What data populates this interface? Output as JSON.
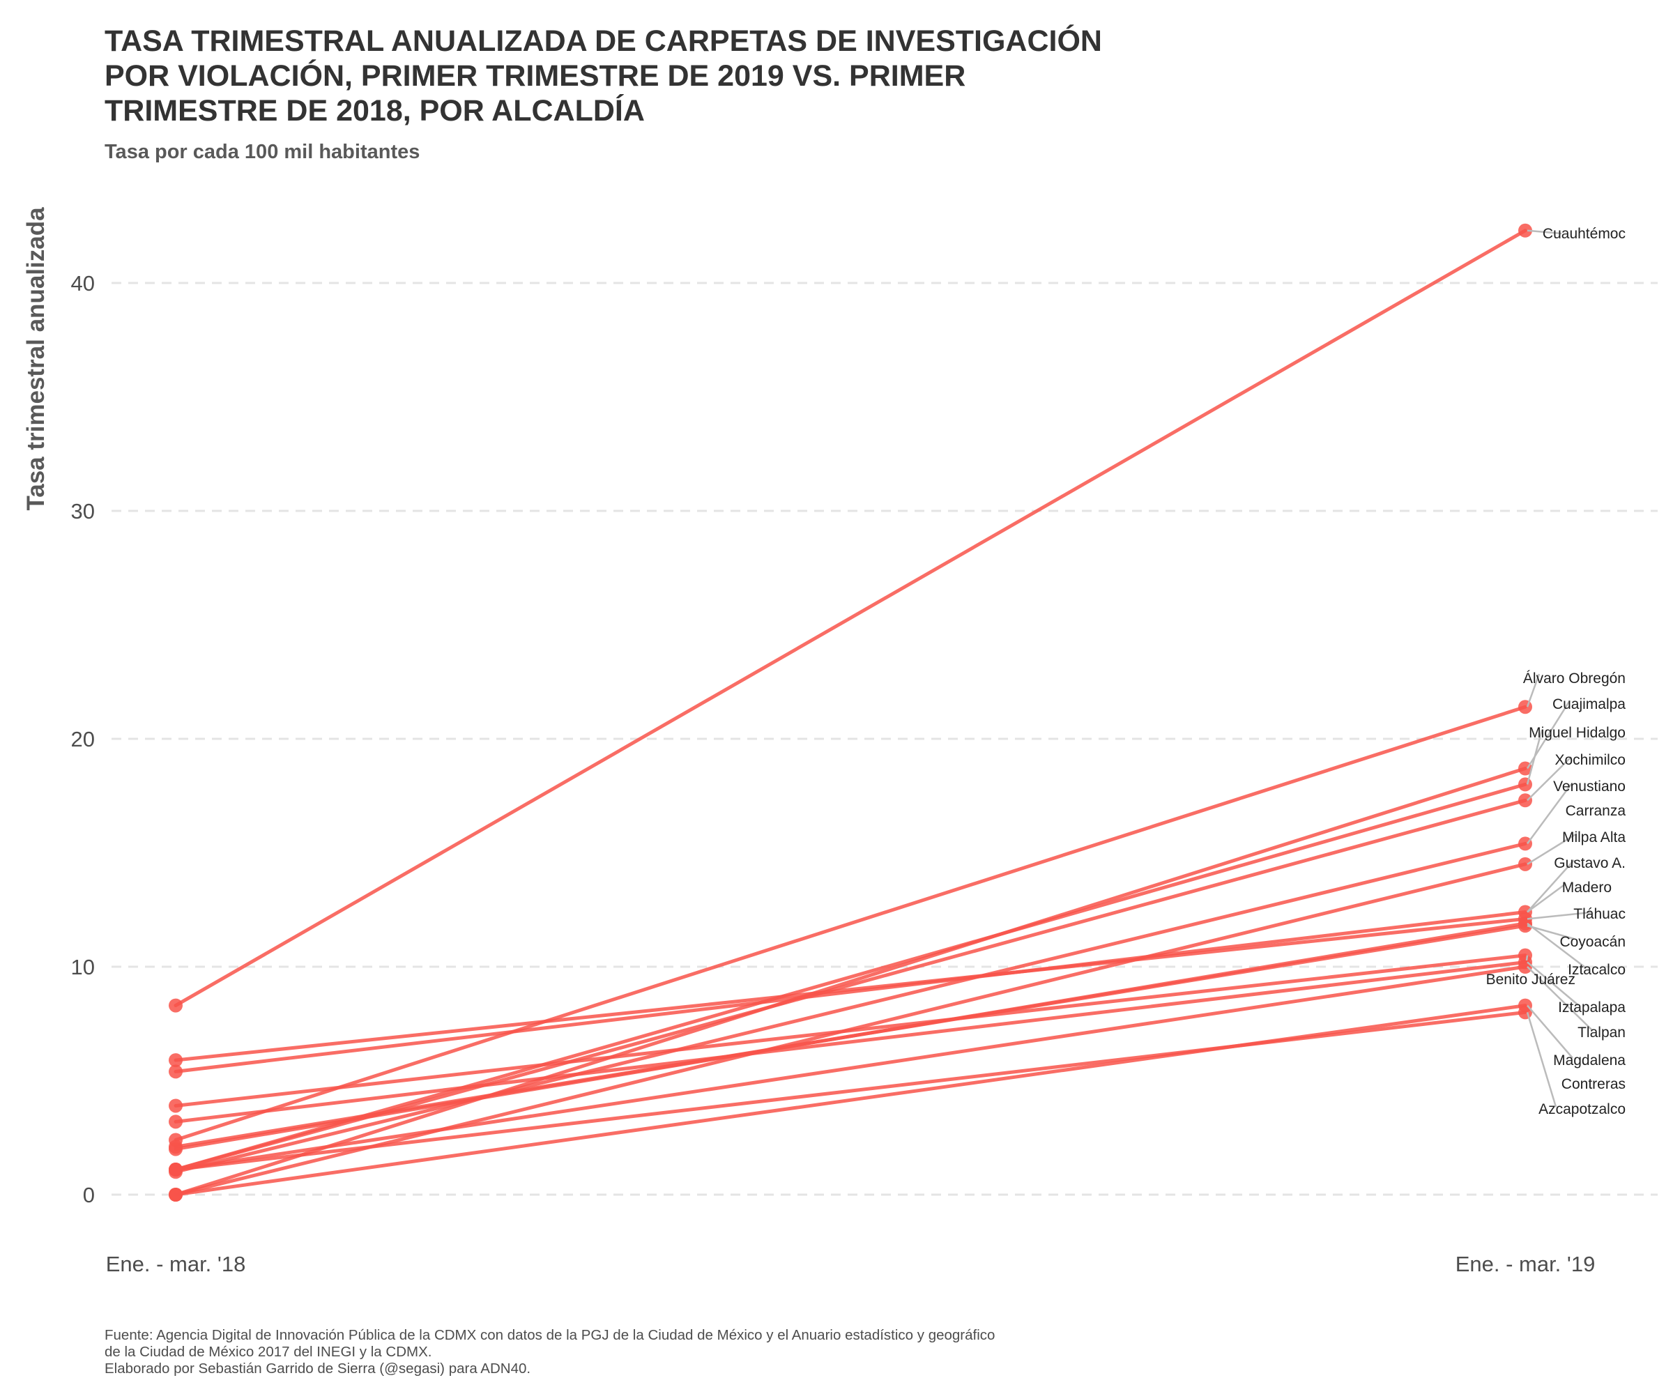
{
  "chart_data": {
    "type": "line",
    "title": "TASA TRIMESTRAL ANUALIZADA DE CARPETAS DE INVESTIGACIÓN POR VIOLACIÓN, PRIMER TRIMESTRE DE 2019 VS. PRIMER TRIMESTRE DE 2018, POR ALCALDÍA",
    "title_lines": [
      "TASA TRIMESTRAL ANUALIZADA DE CARPETAS DE INVESTIGACIÓN",
      "POR VIOLACIÓN, PRIMER TRIMESTRE DE 2019 VS. PRIMER",
      "TRIMESTRE DE 2018, POR ALCALDÍA"
    ],
    "subtitle": "Tasa por cada 100 mil habitantes",
    "ylabel": "Tasa trimestral anualizada",
    "xlabel": "",
    "categories": [
      "Ene. - mar. '18",
      "Ene. - mar. '19"
    ],
    "ylim": [
      -1.5,
      43.5
    ],
    "yticks": [
      0,
      10,
      20,
      30,
      40
    ],
    "grid": true,
    "line_color": "#F8544A",
    "leader_color": "#BBBBBB",
    "series": [
      {
        "name": "Cuauhtémoc",
        "values": [
          8.3,
          42.3
        ]
      },
      {
        "name": "Álvaro Obregón",
        "values": [
          2.4,
          21.4
        ]
      },
      {
        "name": "Cuajimalpa",
        "values": [
          0.0,
          18.7
        ]
      },
      {
        "name": "Miguel Hidalgo",
        "values": [
          1.1,
          18.0
        ]
      },
      {
        "name": "Xochimilco",
        "values": [
          1.1,
          17.3
        ]
      },
      {
        "name": "Venustiano Carranza",
        "values": [
          1.0,
          15.4
        ]
      },
      {
        "name": "Milpa Alta",
        "values": [
          0.0,
          14.5
        ]
      },
      {
        "name": "Gustavo A. Madero",
        "values": [
          5.4,
          12.4
        ]
      },
      {
        "name": "Tláhuac",
        "values": [
          5.9,
          12.1
        ]
      },
      {
        "name": "Coyoacán",
        "values": [
          2.1,
          11.8
        ]
      },
      {
        "name": "Iztacalco",
        "values": [
          2.0,
          11.9
        ]
      },
      {
        "name": "Benito Juárez",
        "values": [
          3.9,
          10.5
        ]
      },
      {
        "name": "Iztapalapa",
        "values": [
          3.2,
          10.2
        ]
      },
      {
        "name": "Tlalpan",
        "values": [
          1.1,
          10.0
        ]
      },
      {
        "name": "Magdalena Contreras",
        "values": [
          0.0,
          8.3
        ]
      },
      {
        "name": "Azcapotzalco",
        "values": [
          1.1,
          8.0
        ]
      }
    ],
    "label_texts": [
      "Cuauhtémoc",
      "Álvaro Obregón",
      "Cuajimalpa",
      "Miguel Hidalgo",
      "Xochimilco",
      "Venustiano",
      "Carranza",
      "Milpa Alta",
      "Gustavo A.",
      "Madero",
      "Tláhuac",
      "Coyoacán",
      "Iztacalco",
      "Benito Juárez",
      "Iztapalapa",
      "Tlalpan",
      "Magdalena",
      "Contreras",
      "Azcapotzalco"
    ]
  },
  "caption": {
    "line1": "Fuente: Agencia Digital de Innovación Pública de la CDMX con datos de la PGJ de la Ciudad de México y el Anuario estadístico y geográfico",
    "line2": "de la Ciudad de México 2017 del INEGI y la CDMX.",
    "line3": "Elaborado por Sebastián Garrido de Sierra (@segasi) para ADN40."
  }
}
